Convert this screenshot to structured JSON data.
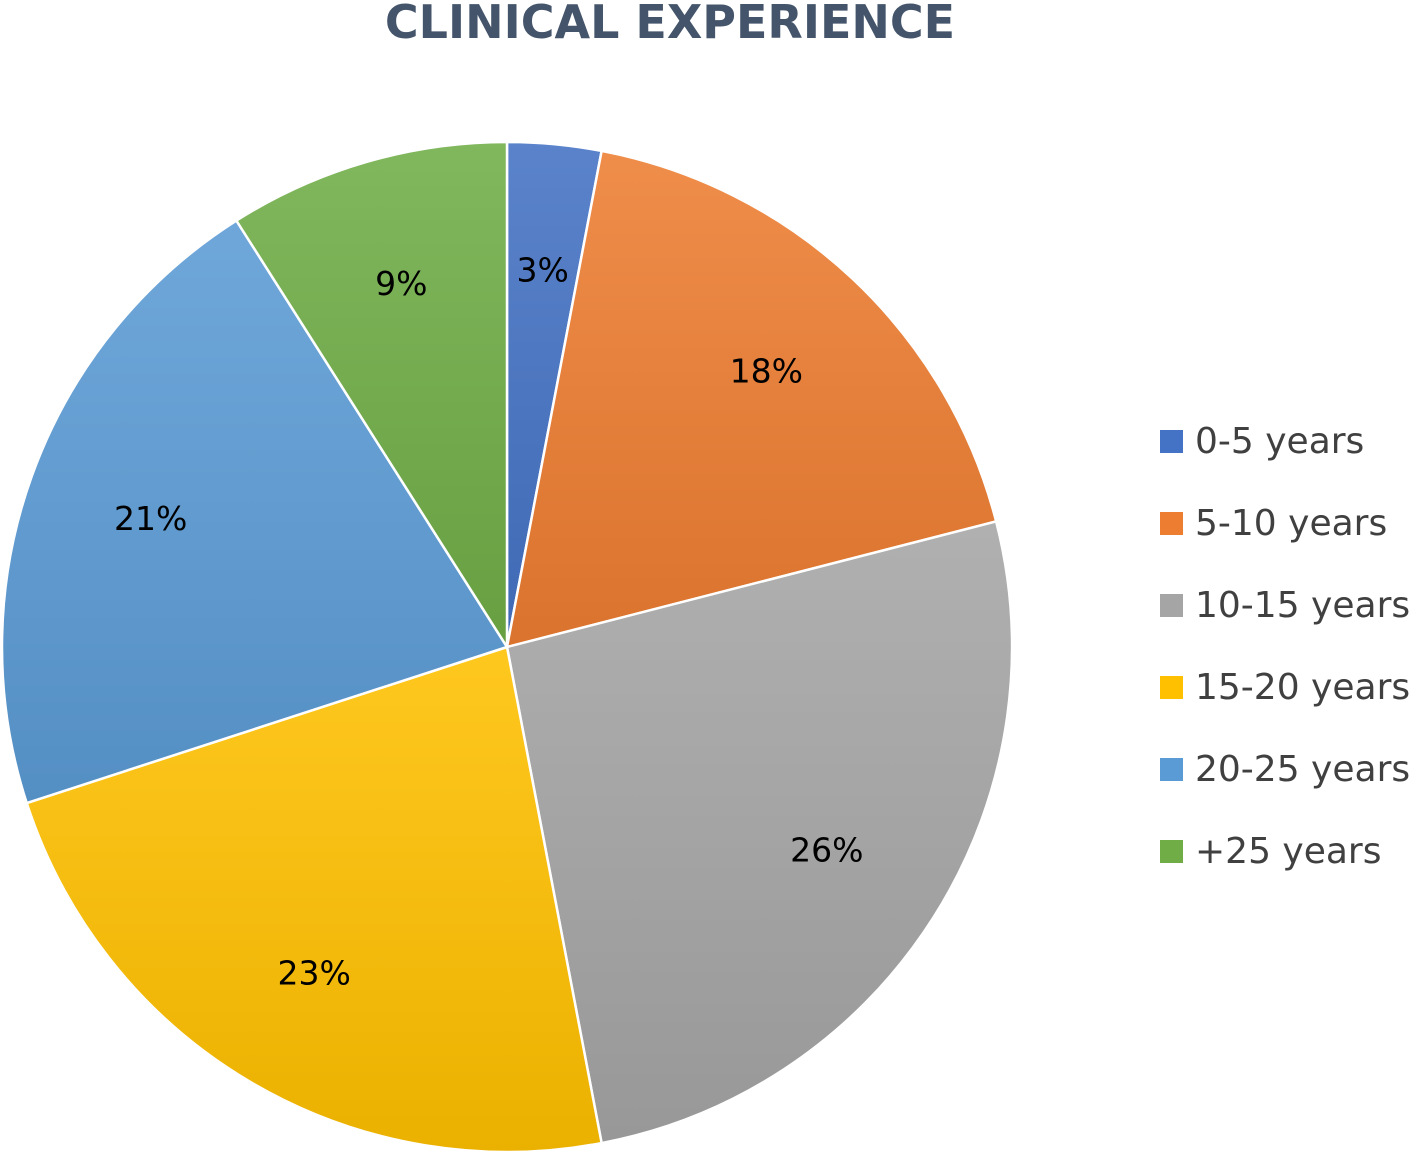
{
  "chart_data": {
    "type": "pie",
    "title": "CLINICAL EXPERIENCE",
    "categories": [
      "0-5 years",
      "5-10 years",
      "10-15 years",
      "15-20 years",
      "20-25 years",
      "+25 years"
    ],
    "values": [
      3,
      18,
      26,
      23,
      21,
      9
    ],
    "labels": [
      "3%",
      "18%",
      "26%",
      "23%",
      "21%",
      "9%"
    ],
    "colors": [
      "#4472c4",
      "#ed7d31",
      "#a5a5a5",
      "#ffc000",
      "#5b9bd5",
      "#70ad47"
    ],
    "start_angle_deg": 0,
    "direction": "clockwise",
    "legend_position": "right"
  }
}
